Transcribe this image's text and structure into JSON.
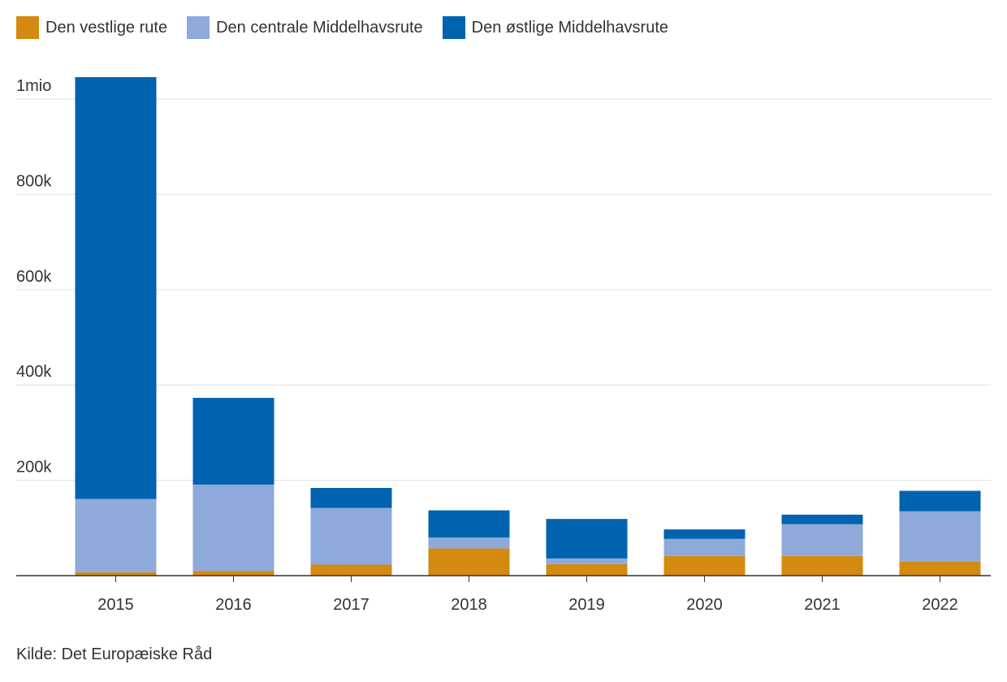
{
  "chart_data": {
    "type": "bar",
    "stacked": true,
    "categories": [
      "2015",
      "2016",
      "2017",
      "2018",
      "2019",
      "2020",
      "2021",
      "2022"
    ],
    "series": [
      {
        "name": "Den vestlige rute",
        "color": "#d48a0f",
        "values": [
          7000,
          10000,
          23000,
          57000,
          24000,
          41000,
          41000,
          29000
        ]
      },
      {
        "name": "Den centrale Middelhavsrute",
        "color": "#8eaadb",
        "values": [
          154000,
          181000,
          119000,
          23000,
          12000,
          36000,
          67000,
          106000
        ]
      },
      {
        "name": "Den østlige Middelhavsrute",
        "color": "#0063b0",
        "values": [
          885000,
          182000,
          42000,
          57000,
          83000,
          20000,
          20000,
          43000
        ]
      }
    ],
    "yticks": [
      200000,
      400000,
      600000,
      800000,
      1000000
    ],
    "ytick_labels": [
      "200k",
      "400k",
      "600k",
      "800k",
      "1mio"
    ],
    "ylim": [
      0,
      1050000
    ],
    "grid": true,
    "legend_position": "top-left"
  },
  "source": "Kilde: Det Europæiske Råd"
}
